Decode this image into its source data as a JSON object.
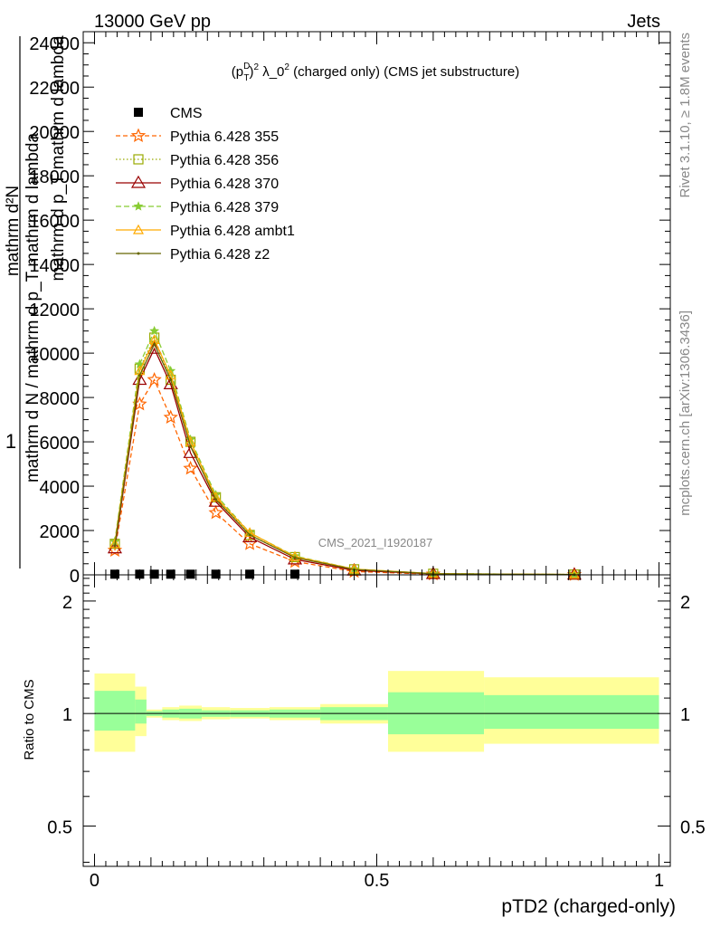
{
  "header": {
    "left": "13000 GeV pp",
    "right": "Jets"
  },
  "side_labels": {
    "rivet": "Rivet 3.1.10, ≥ 1.8M events",
    "mcplots": "mcplots.cern.ch [arXiv:1306.3436]"
  },
  "watermark": "CMS_2021_I1920187",
  "colors": {
    "cms": "#000000",
    "p355": "#ff6600",
    "p356": "#99aa00",
    "p370": "#990000",
    "p379": "#88cc33",
    "ambt1": "#ffaa00",
    "z2": "#666600",
    "band_inner": "#99ff99",
    "band_outer": "#ffff99"
  },
  "chart_data": [
    {
      "type": "line",
      "title": "(p_T^D)^2 λ_0^2 (charged only) (CMS jet substructure)",
      "title_parts": {
        "main": "(p",
        "sup": "D",
        "sub": "T",
        "paren": ")",
        "exp": "2",
        "lambda": " λ_0",
        "lexp": "2",
        "rest": " (charged only) (CMS jet substructure)"
      },
      "ylabel_lines": [
        "mathrm d²N",
        "1",
        "mathrm d N / mathrm d p_T mathrm d lambda",
        "mathrm d p_T mathrm d lambda"
      ],
      "xlim": [
        -0.02,
        1.02
      ],
      "ylim": [
        0,
        24500
      ],
      "yticks": [
        0,
        2000,
        4000,
        6000,
        8000,
        10000,
        12000,
        14000,
        16000,
        18000,
        20000,
        22000,
        24000
      ],
      "ytick_labels": [
        "0",
        "2000",
        "4000",
        "6000",
        "8000",
        "10000",
        "12000",
        "14000",
        "16000",
        "18000",
        "20000",
        "22000",
        "24000"
      ],
      "x": [
        0.036,
        0.08,
        0.106,
        0.135,
        0.17,
        0.215,
        0.275,
        0.355,
        0.46,
        0.6,
        0.85
      ],
      "legend": [
        {
          "key": "cms",
          "label": "CMS"
        },
        {
          "key": "p355",
          "label": "Pythia 6.428 355"
        },
        {
          "key": "p356",
          "label": "Pythia 6.428 356"
        },
        {
          "key": "p370",
          "label": "Pythia 6.428 370"
        },
        {
          "key": "p379",
          "label": "Pythia 6.428 379"
        },
        {
          "key": "ambt1",
          "label": "Pythia 6.428 ambt1"
        },
        {
          "key": "z2",
          "label": "Pythia 6.428 z2"
        }
      ],
      "series": [
        {
          "key": "cms",
          "name": "CMS",
          "values": [
            30,
            30,
            30,
            30,
            30,
            30,
            30,
            30,
            0,
            0,
            0
          ]
        },
        {
          "key": "p355",
          "name": "Pythia 6.428 355",
          "values": [
            1100,
            7700,
            8800,
            7100,
            4800,
            2800,
            1400,
            600,
            150,
            30,
            10
          ]
        },
        {
          "key": "p356",
          "name": "Pythia 6.428 356",
          "values": [
            1400,
            9300,
            10700,
            8800,
            6000,
            3500,
            1800,
            800,
            250,
            50,
            15
          ]
        },
        {
          "key": "p370",
          "name": "Pythia 6.428 370",
          "values": [
            1200,
            8800,
            10200,
            8600,
            5500,
            3300,
            1700,
            700,
            200,
            40,
            12
          ]
        },
        {
          "key": "p379",
          "name": "Pythia 6.428 379",
          "values": [
            1500,
            9500,
            11000,
            9200,
            6100,
            3600,
            1900,
            850,
            260,
            55,
            15
          ]
        },
        {
          "key": "ambt1",
          "name": "Pythia 6.428 ambt1",
          "values": [
            1400,
            9200,
            10600,
            9000,
            6000,
            3500,
            1900,
            820,
            260,
            55,
            15
          ]
        },
        {
          "key": "z2",
          "name": "Pythia 6.428 z2",
          "values": [
            1300,
            9000,
            10400,
            8800,
            5800,
            3400,
            1800,
            780,
            240,
            50,
            14
          ]
        }
      ]
    },
    {
      "type": "area",
      "ylabel": "Ratio to CMS",
      "xlabel": "pTD2 (charged-only)",
      "xlim": [
        -0.02,
        1.02
      ],
      "ylim": [
        0.39,
        2.35
      ],
      "ytick_labels": [
        "0.5",
        "1",
        "2"
      ],
      "xtick_labels": [
        "0",
        "0.5",
        "1"
      ],
      "reference": 1,
      "bins": [
        {
          "x0": 0.0,
          "x1": 0.072,
          "inner": [
            0.9,
            1.15
          ],
          "outer": [
            0.79,
            1.28
          ]
        },
        {
          "x0": 0.072,
          "x1": 0.092,
          "inner": [
            0.94,
            1.09
          ],
          "outer": [
            0.87,
            1.18
          ]
        },
        {
          "x0": 0.092,
          "x1": 0.12,
          "inner": [
            0.985,
            1.015
          ],
          "outer": [
            0.975,
            1.025
          ]
        },
        {
          "x0": 0.12,
          "x1": 0.15,
          "inner": [
            0.975,
            1.025
          ],
          "outer": [
            0.96,
            1.04
          ]
        },
        {
          "x0": 0.15,
          "x1": 0.19,
          "inner": [
            0.97,
            1.03
          ],
          "outer": [
            0.955,
            1.05
          ]
        },
        {
          "x0": 0.19,
          "x1": 0.24,
          "inner": [
            0.98,
            1.02
          ],
          "outer": [
            0.965,
            1.04
          ]
        },
        {
          "x0": 0.24,
          "x1": 0.31,
          "inner": [
            0.98,
            1.02
          ],
          "outer": [
            0.97,
            1.035
          ]
        },
        {
          "x0": 0.31,
          "x1": 0.4,
          "inner": [
            0.975,
            1.025
          ],
          "outer": [
            0.96,
            1.04
          ]
        },
        {
          "x0": 0.4,
          "x1": 0.52,
          "inner": [
            0.96,
            1.04
          ],
          "outer": [
            0.94,
            1.06
          ]
        },
        {
          "x0": 0.52,
          "x1": 0.69,
          "inner": [
            0.88,
            1.14
          ],
          "outer": [
            0.79,
            1.3
          ]
        },
        {
          "x0": 0.69,
          "x1": 1.0,
          "inner": [
            0.91,
            1.12
          ],
          "outer": [
            0.83,
            1.25
          ]
        }
      ]
    }
  ]
}
